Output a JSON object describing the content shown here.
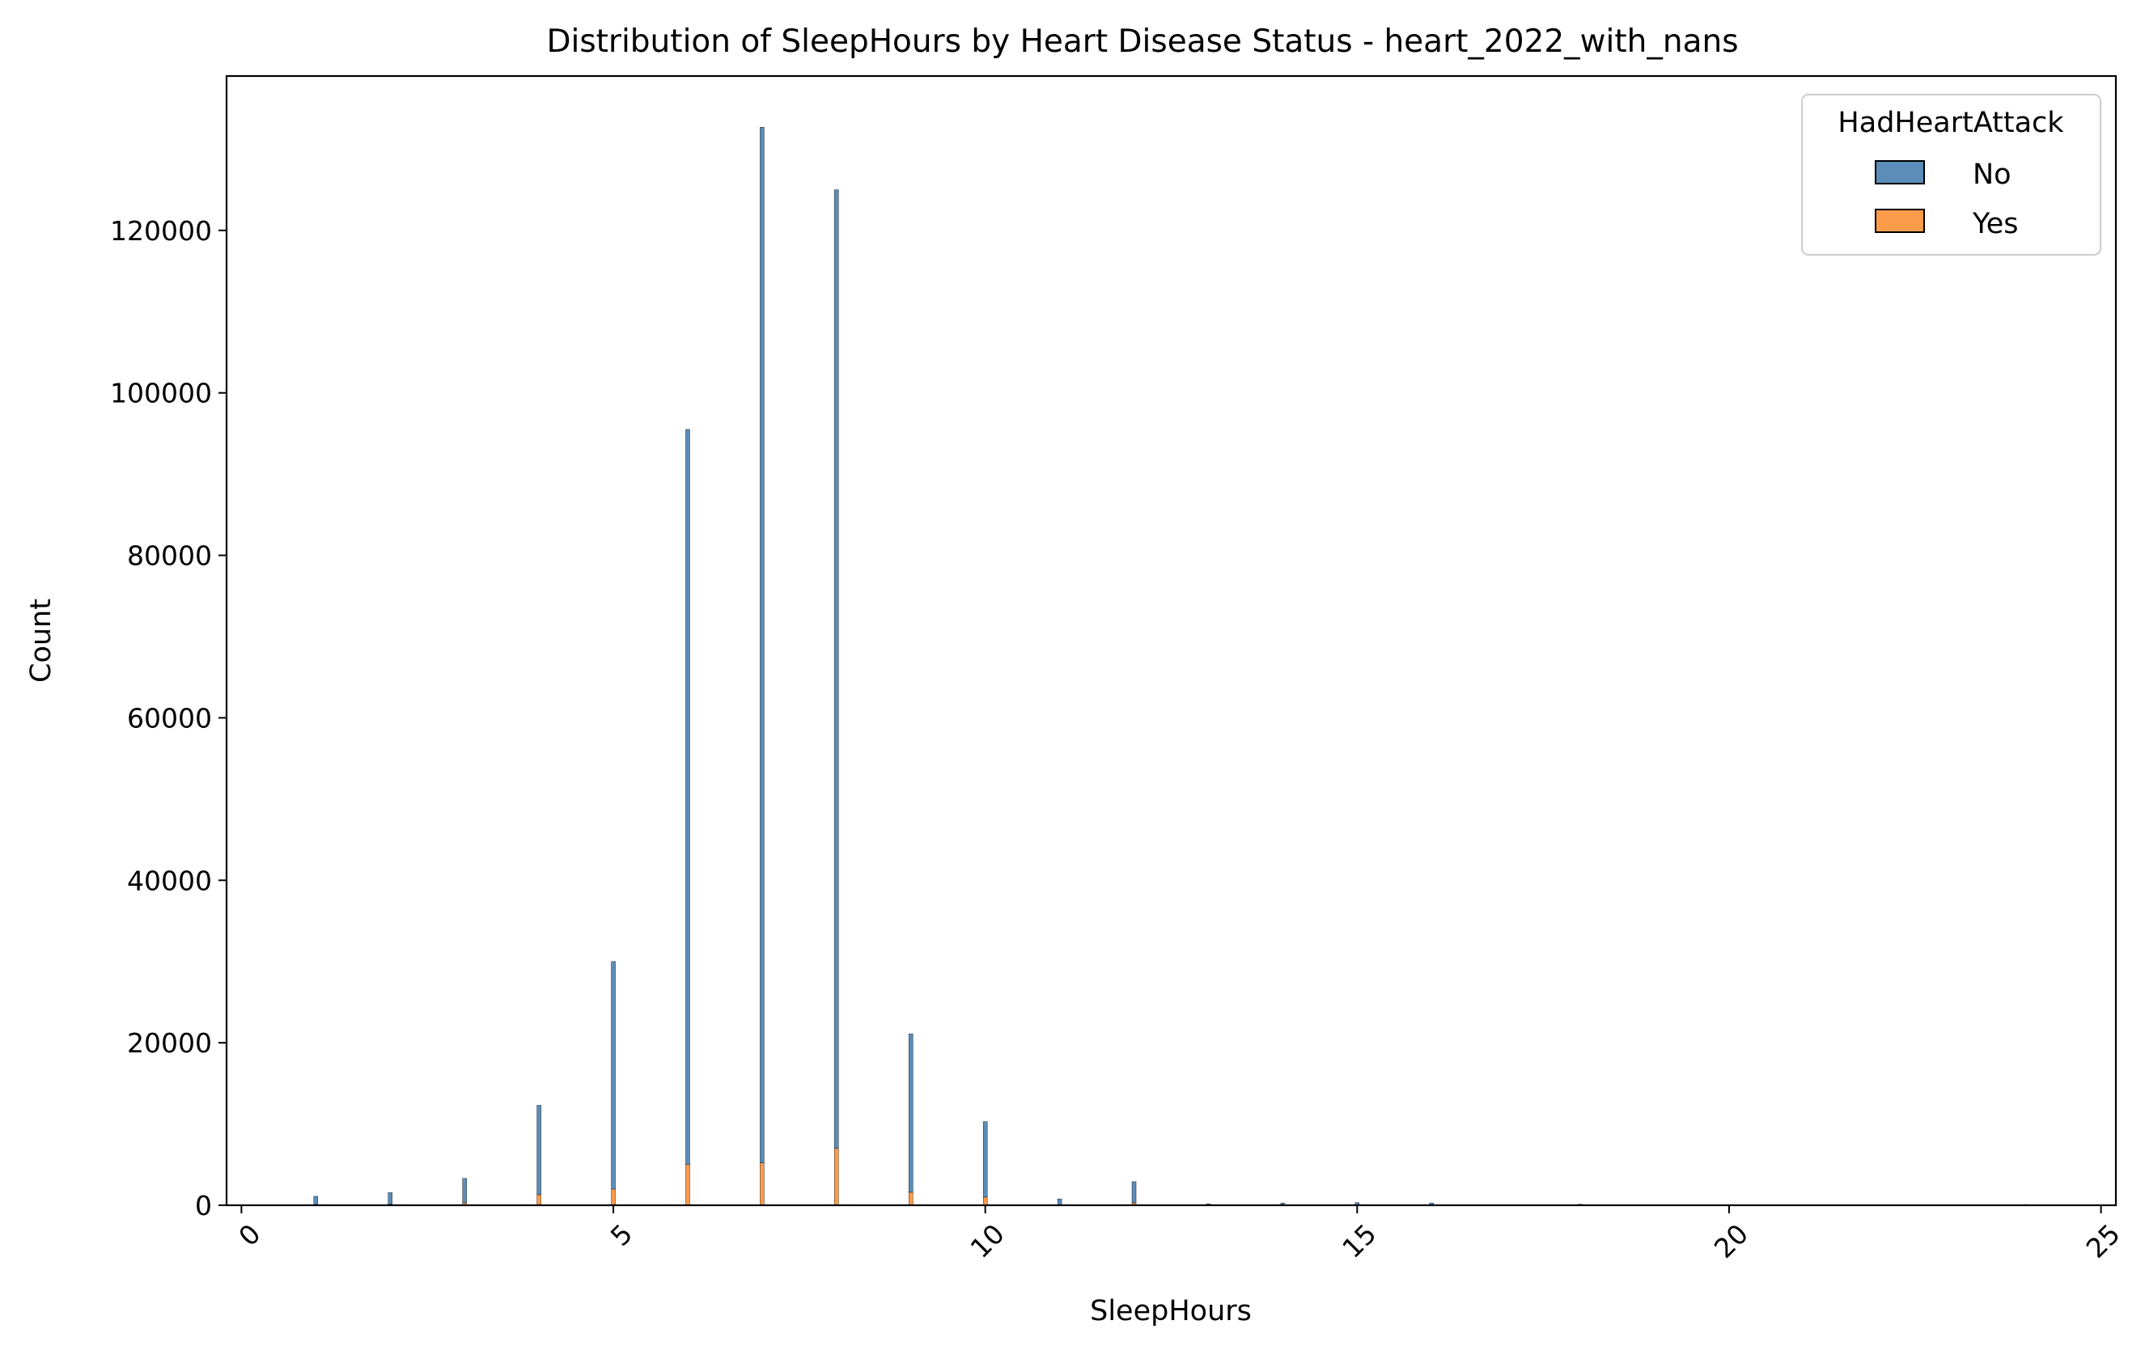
{
  "chart_data": {
    "type": "bar",
    "title": "Distribution of SleepHours by Heart Disease Status - heart_2022_with_nans",
    "xlabel": "SleepHours",
    "ylabel": "Count",
    "xlim": [
      -0.2,
      25.2
    ],
    "ylim": [
      0,
      139000
    ],
    "xticks": [
      0,
      5,
      10,
      15,
      20,
      25
    ],
    "xtick_labels": [
      "0",
      "5",
      "10",
      "15",
      "20",
      "25"
    ],
    "xtick_rotation_deg": 45,
    "yticks": [
      0,
      20000,
      40000,
      60000,
      80000,
      100000,
      120000
    ],
    "ytick_labels": [
      "0",
      "20000",
      "40000",
      "60000",
      "80000",
      "100000",
      "120000"
    ],
    "stacked": true,
    "grid": false,
    "legend": {
      "title": "HadHeartAttack",
      "placement": "top-right",
      "entries": [
        "No",
        "Yes"
      ]
    },
    "colors": {
      "No": "#5b8db8",
      "Yes": "#fc9c4b"
    },
    "x": [
      1,
      2,
      3,
      4,
      5,
      6,
      7,
      8,
      9,
      10,
      11,
      12,
      13,
      14,
      15,
      16,
      18,
      24
    ],
    "series": [
      {
        "name": "No",
        "values": [
          1000,
          1400,
          3000,
          11000,
          28000,
          90500,
          127500,
          118000,
          19500,
          9300,
          700,
          2600,
          150,
          250,
          300,
          250,
          100,
          80
        ]
      },
      {
        "name": "Yes",
        "values": [
          100,
          150,
          300,
          1300,
          2000,
          5000,
          5200,
          7000,
          1600,
          1000,
          80,
          300,
          20,
          30,
          30,
          30,
          20,
          10
        ]
      }
    ]
  }
}
